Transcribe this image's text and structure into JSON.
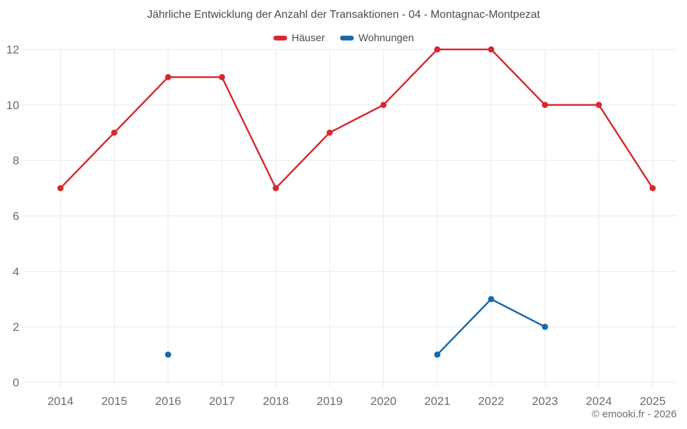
{
  "page": {
    "footer": "© emooki.fr - 2026"
  },
  "chart_data": {
    "type": "line",
    "title": "Jährliche Entwicklung der Anzahl der Transaktionen - 04 - Montagnac-Montpezat",
    "xlabel": "",
    "ylabel": "",
    "categories": [
      "2014",
      "2015",
      "2016",
      "2017",
      "2018",
      "2019",
      "2020",
      "2021",
      "2022",
      "2023",
      "2024",
      "2025"
    ],
    "series": [
      {
        "name": "Häuser",
        "color": "#d7282f",
        "values": [
          7,
          9,
          11,
          11,
          7,
          9,
          10,
          12,
          12,
          10,
          10,
          7
        ]
      },
      {
        "name": "Wohnungen",
        "color": "#1769aa",
        "values": [
          null,
          null,
          1,
          null,
          null,
          null,
          null,
          1,
          3,
          2,
          null,
          null
        ]
      }
    ],
    "ylim": [
      0,
      12
    ],
    "yticks": [
      0,
      2,
      4,
      6,
      8,
      10,
      12
    ],
    "grid": true,
    "legend_position": "top",
    "grid_color": "#e9e9e9",
    "axis_label_color": "#6b6b6b"
  }
}
